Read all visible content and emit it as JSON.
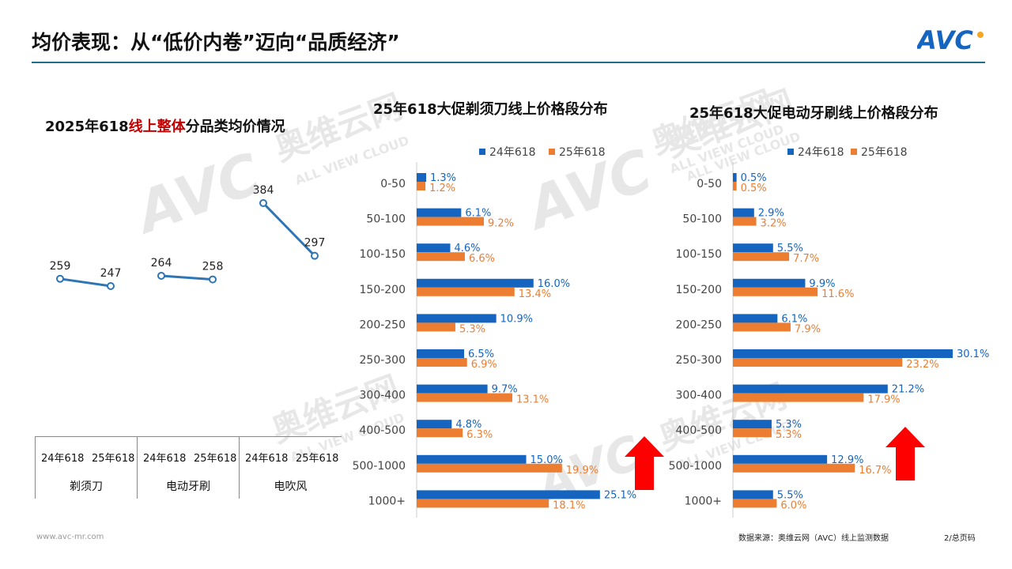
{
  "page": {
    "title": "均价表现：从“低价内卷”迈向“品质经济”",
    "logo_text": "AVC",
    "watermark_cn": "奥维云网",
    "watermark_en": "ALL VIEW CLOUD",
    "footer_url": "www.avc-mr.com",
    "footer_source": "数据来源：奥维云网（AVC）线上监测数据",
    "footer_page": "2/总页码",
    "colors": {
      "series_24": "#1565c0",
      "series_25": "#ed7d31",
      "line": "#2e75b6",
      "arrow": "#ff0000",
      "rule": "#1e6f8c"
    }
  },
  "left_panel": {
    "title_pre": "2025年618",
    "title_hl": "线上整体",
    "title_post": "分品类均价情况",
    "categories": [
      {
        "name": "剃须刀",
        "y24": "24年618",
        "y25": "25年618"
      },
      {
        "name": "电动牙刷",
        "y24": "24年618",
        "y25": "25年618"
      },
      {
        "name": "电吹风",
        "y24": "24年618",
        "y25": "25年618"
      }
    ]
  },
  "chart_data": [
    {
      "type": "line",
      "title": "",
      "categories": [
        "剃须刀",
        "电动牙刷",
        "电吹风"
      ],
      "x": [
        "24年618",
        "25年618"
      ],
      "series": [
        {
          "name": "剃须刀",
          "values": [
            259,
            247
          ]
        },
        {
          "name": "电动牙刷",
          "values": [
            264,
            258
          ]
        },
        {
          "name": "电吹风",
          "values": [
            384,
            297
          ]
        }
      ]
    },
    {
      "type": "bar",
      "title": "25年618大促剃须刀线上价格段分布",
      "categories": [
        "0-50",
        "50-100",
        "100-150",
        "150-200",
        "200-250",
        "250-300",
        "300-400",
        "400-500",
        "500-1000",
        "1000+"
      ],
      "series": [
        {
          "name": "24年618",
          "values": [
            1.3,
            6.1,
            4.6,
            16.0,
            10.9,
            6.5,
            9.7,
            4.8,
            15.0,
            25.1
          ]
        },
        {
          "name": "25年618",
          "values": [
            1.2,
            9.2,
            6.6,
            13.4,
            5.3,
            6.9,
            13.1,
            6.3,
            19.9,
            18.1
          ]
        }
      ],
      "unit": "%",
      "legend": "top",
      "xlim": [
        0,
        30.1
      ]
    },
    {
      "type": "bar",
      "title": "25年618大促电动牙刷线上价格段分布",
      "categories": [
        "0-50",
        "50-100",
        "100-150",
        "150-200",
        "200-250",
        "250-300",
        "300-400",
        "400-500",
        "500-1000",
        "1000+"
      ],
      "series": [
        {
          "name": "24年618",
          "values": [
            0.5,
            2.9,
            5.5,
            9.9,
            6.1,
            30.1,
            21.2,
            5.3,
            12.9,
            5.5
          ]
        },
        {
          "name": "25年618",
          "values": [
            0.5,
            3.2,
            7.7,
            11.6,
            7.9,
            23.2,
            17.9,
            5.3,
            16.7,
            6.0
          ]
        }
      ],
      "unit": "%",
      "legend": "top",
      "xlim": [
        0,
        30.1
      ]
    }
  ]
}
